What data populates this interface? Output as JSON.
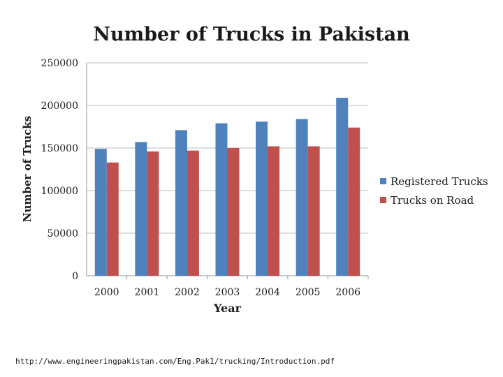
{
  "chart_data": {
    "type": "bar",
    "title": "Number of Trucks in Pakistan",
    "xlabel": "Year",
    "ylabel": "Number of Trucks",
    "categories": [
      "2000",
      "2001",
      "2002",
      "2003",
      "2004",
      "2005",
      "2006"
    ],
    "series": [
      {
        "name": "Registered Trucks",
        "color": "#4f81bd",
        "values": [
          149000,
          157000,
          171000,
          179000,
          181000,
          184000,
          209000
        ]
      },
      {
        "name": "Trucks on Road",
        "color": "#c0504d",
        "values": [
          133000,
          146000,
          147000,
          150000,
          152000,
          152000,
          174000
        ]
      }
    ],
    "ylim": [
      0,
      250000
    ],
    "yticks": [
      "250000",
      "200000",
      "150000",
      "100000",
      "50000",
      "0"
    ],
    "grid": true,
    "legend_position": "right"
  },
  "footer": {
    "source_url": "http://www.engineeringpakistan.com/Eng.Pak1/trucking/Introduction.pdf"
  }
}
